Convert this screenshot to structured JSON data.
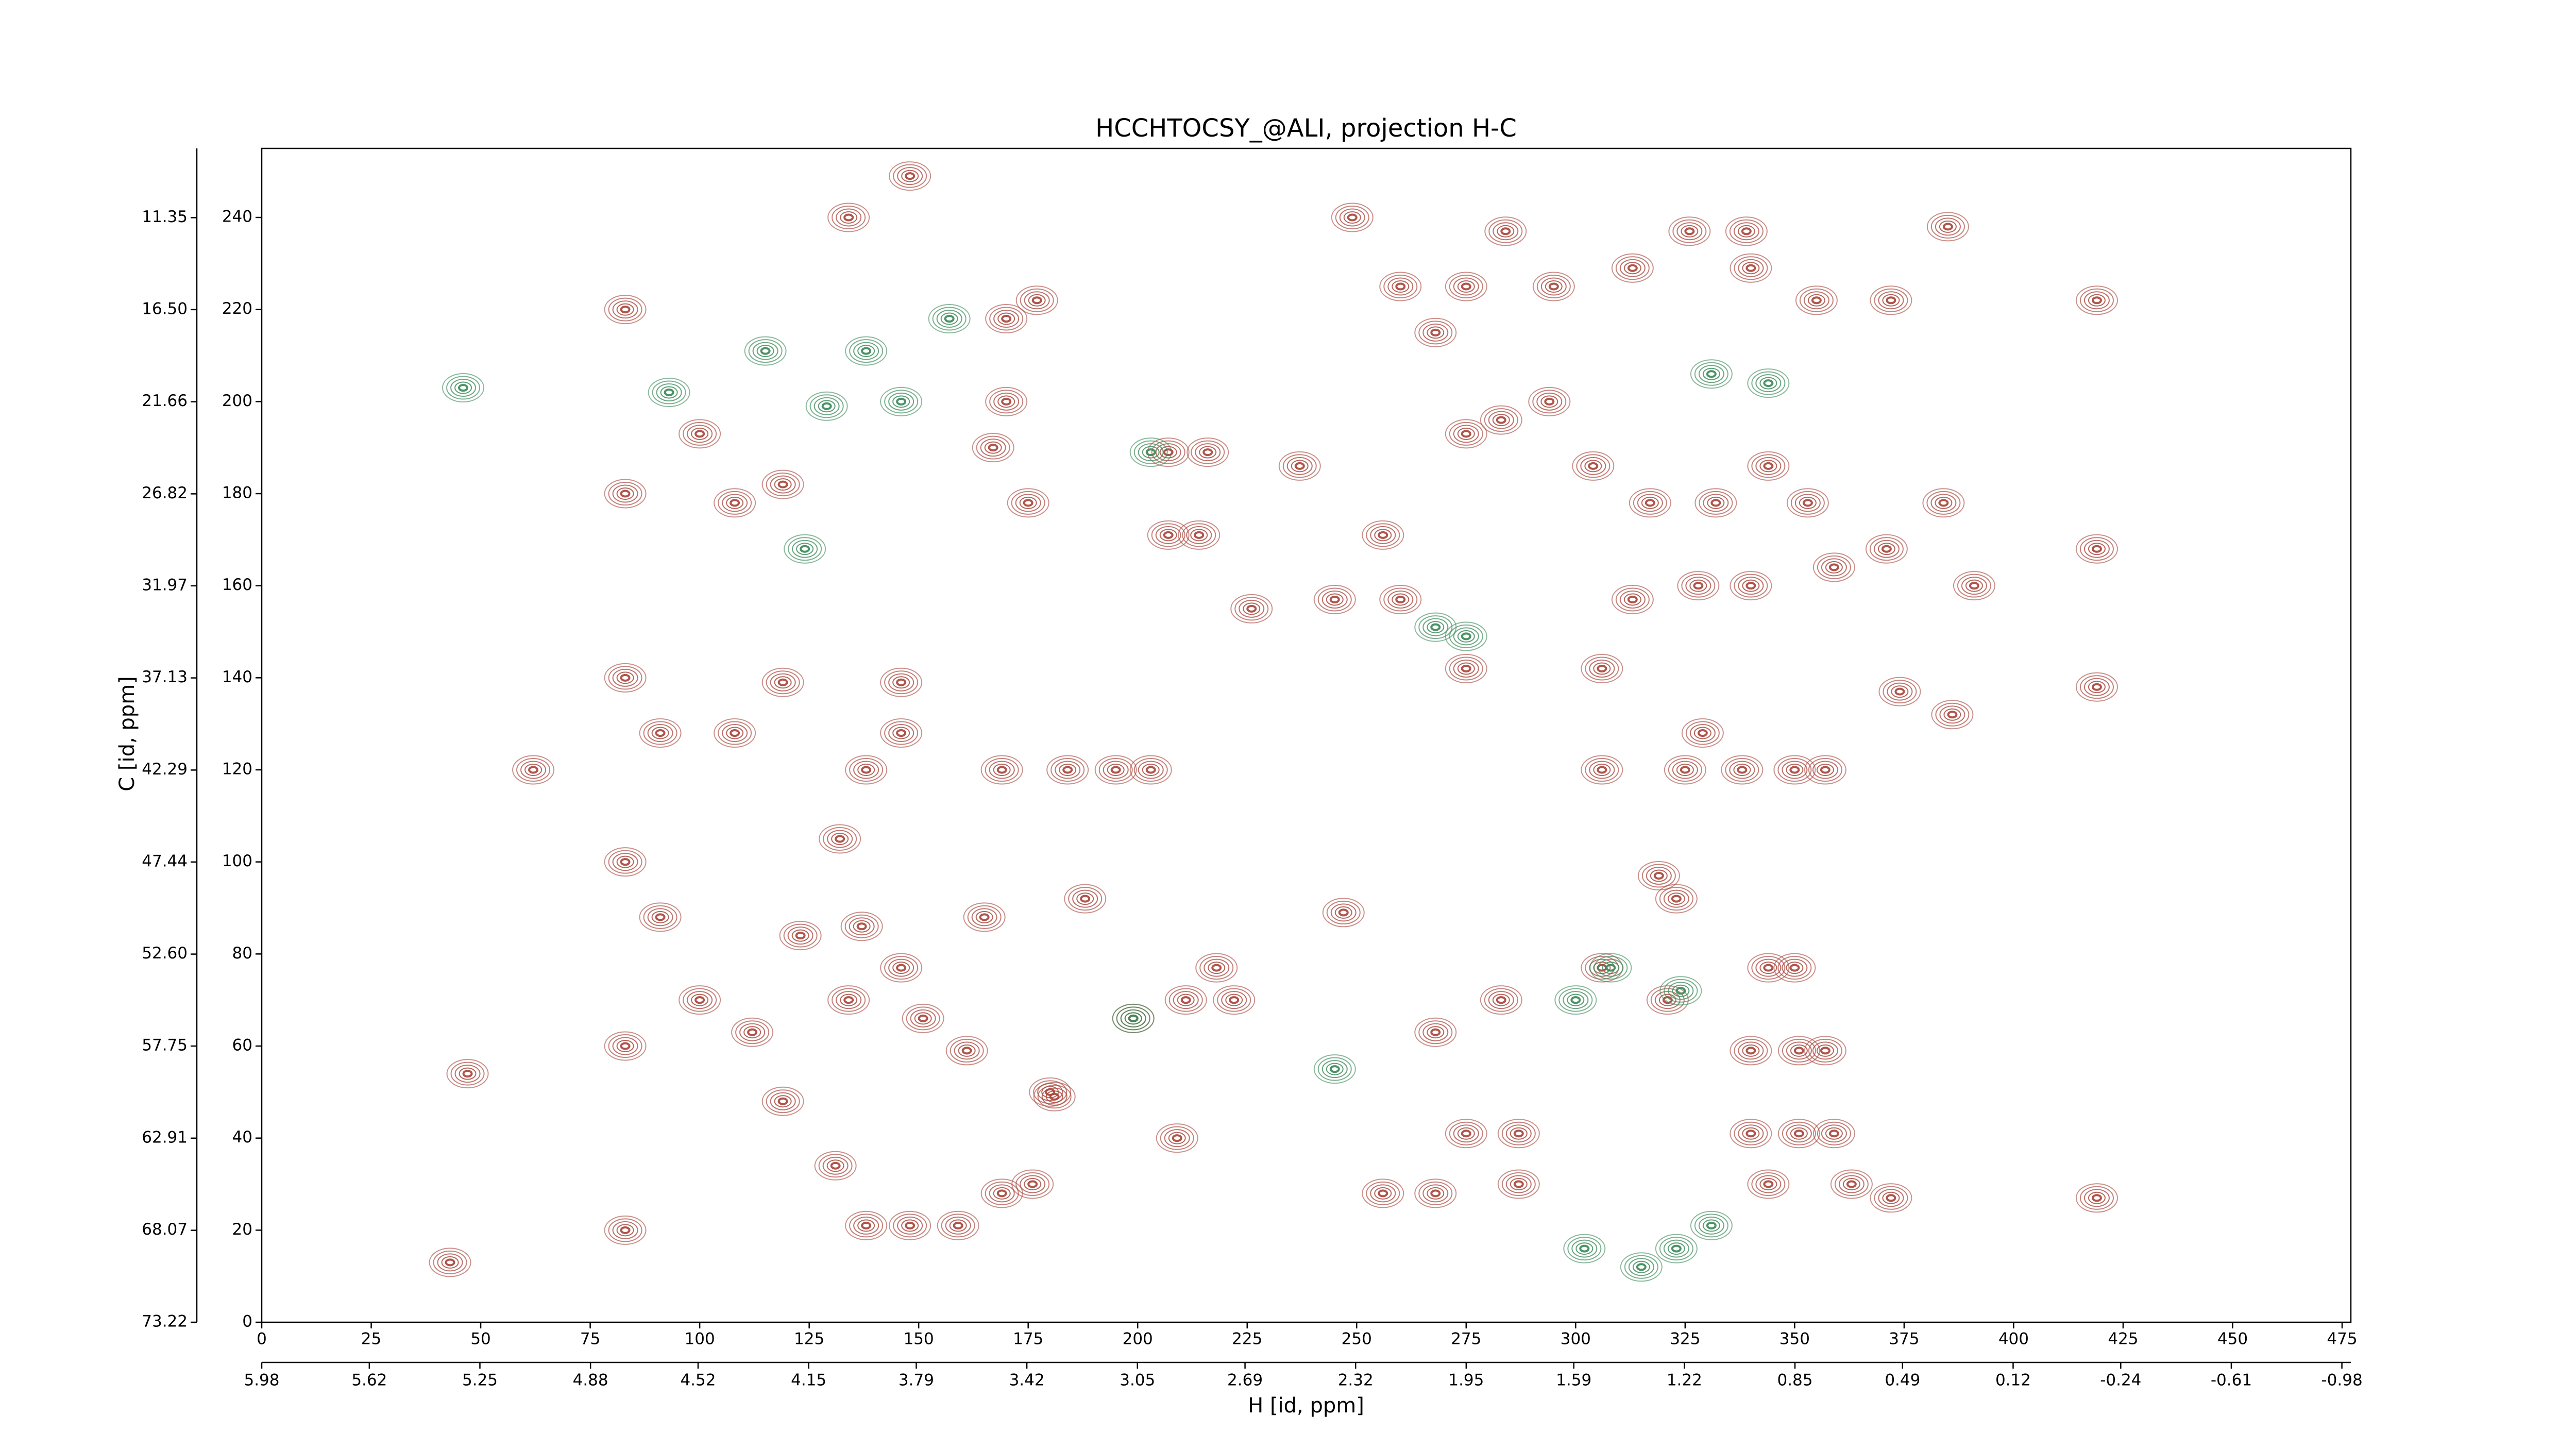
{
  "chart_data": {
    "type": "contour",
    "title": "HCCHTOCSY_@ALI, projection H-C",
    "xlabel": "H [id, ppm]",
    "ylabel": "C [id, ppm]",
    "xlim": [
      0,
      477
    ],
    "xticks": [
      0,
      25,
      50,
      75,
      100,
      125,
      150,
      175,
      200,
      225,
      250,
      275,
      300,
      325,
      350,
      375,
      400,
      425,
      450,
      475
    ],
    "x2lim": [
      5.98,
      -1.01
    ],
    "x2ticks": [
      5.98,
      5.62,
      5.25,
      4.88,
      4.52,
      4.15,
      3.79,
      3.42,
      3.05,
      2.69,
      2.32,
      1.95,
      1.59,
      1.22,
      0.85,
      0.49,
      0.12,
      -0.24,
      -0.61,
      -0.98
    ],
    "ylim": [
      0,
      255
    ],
    "yticks": [
      0,
      20,
      40,
      60,
      80,
      100,
      120,
      140,
      160,
      180,
      200,
      220,
      240
    ],
    "y2lim": [
      73.22,
      7.47
    ],
    "y2ticks": [
      73.22,
      68.07,
      62.91,
      57.75,
      {
        "value": 52.6,
        "label": "52.60"
      },
      47.44,
      42.29,
      37.13,
      31.97,
      26.82,
      21.66,
      {
        "value": 16.5,
        "label": "16.50"
      },
      11.35
    ],
    "series": [
      {
        "color": "#a8463c",
        "x": [
          284,
          326,
          339,
          385,
          419,
          384,
          419,
          371,
          391,
          419,
          374,
          386,
          419,
          372,
          209,
          181,
          247,
          188,
          165,
          329,
          325,
          350,
          338,
          357,
          306,
          203,
          195,
          184,
          169,
          146,
          146,
          138,
          132,
          137,
          146,
          161,
          151,
          134,
          123,
          108,
          119,
          100,
          108,
          119,
          170,
          177,
          170,
          167,
          175,
          207,
          216,
          207,
          214,
          226,
          237,
          256,
          268,
          275,
          283,
          294,
          304,
          317,
          332,
          344,
          353,
          359,
          313,
          340,
          328,
          306,
          275,
          260,
          245,
          355,
          372,
          340,
          313,
          295,
          275,
          260,
          268,
          283,
          306,
          321,
          344,
          350,
          340,
          351,
          357,
          340,
          351,
          359,
          344,
          363,
          287,
          268,
          256,
          275,
          287,
          211,
          222,
          218,
          199,
          180,
          176,
          169,
          159,
          148,
          138,
          131,
          119,
          112,
          100,
          91,
          91,
          43,
          62,
          47,
          134,
          148,
          249,
          323,
          319,
          83,
          83,
          83,
          83,
          83,
          83
        ],
        "y": [
          237,
          237,
          237,
          238,
          222,
          178,
          168,
          168,
          160,
          138,
          137,
          132,
          27,
          27,
          40,
          49,
          89,
          92,
          88,
          128,
          120,
          120,
          120,
          120,
          120,
          120,
          120,
          120,
          120,
          128,
          139,
          120,
          105,
          86,
          77,
          59,
          66,
          70,
          84,
          128,
          139,
          193,
          178,
          182,
          218,
          222,
          200,
          190,
          178,
          189,
          189,
          171,
          171,
          155,
          186,
          171,
          215,
          193,
          196,
          200,
          186,
          178,
          178,
          186,
          178,
          164,
          157,
          160,
          160,
          142,
          142,
          157,
          157,
          222,
          222,
          229,
          229,
          225,
          225,
          225,
          63,
          70,
          77,
          70,
          77,
          77,
          59,
          59,
          59,
          41,
          41,
          41,
          30,
          30,
          30,
          28,
          28,
          41,
          41,
          70,
          70,
          77,
          66,
          50,
          30,
          28,
          21,
          21,
          21,
          34,
          48,
          63,
          70,
          88,
          128,
          13,
          120,
          54,
          240,
          249,
          240,
          92,
          97,
          20,
          60,
          100,
          140,
          180,
          220
        ]
      },
      {
        "color": "#3c8a5a",
        "x": [
          157,
          138,
          115,
          129,
          146,
          46,
          93,
          308,
          300,
          302,
          315,
          323,
          331,
          324,
          203,
          268,
          275,
          245,
          124,
          344,
          331,
          199
        ],
        "y": [
          218,
          211,
          211,
          199,
          200,
          203,
          202,
          77,
          70,
          16,
          12,
          16,
          21,
          72,
          189,
          151,
          149,
          55,
          168,
          204,
          206,
          66
        ]
      }
    ]
  }
}
